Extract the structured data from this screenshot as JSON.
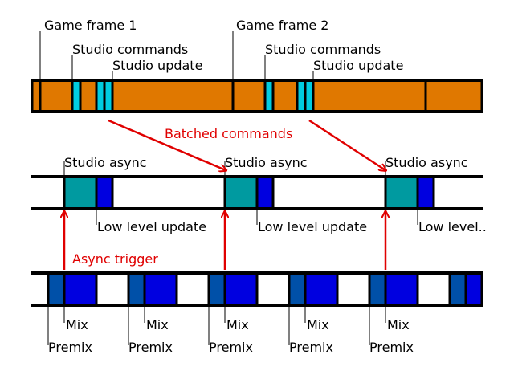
{
  "labels": {
    "game_frame_1": "Game frame 1",
    "game_frame_2": "Game frame 2",
    "studio_commands": "Studio commands",
    "studio_update": "Studio update",
    "batched_commands": "Batched commands",
    "studio_async": "Studio async",
    "low_level_update": "Low level update",
    "low_level_truncated": "Low level..",
    "async_trigger": "Async trigger",
    "mix": "Mix",
    "premix": "Premix"
  },
  "colors": {
    "game_thread": "#e07800",
    "studio_command": "#00cce0",
    "studio_async": "#009aa0",
    "low_level_update": "#0000e0",
    "premix": "#0050a8",
    "mix": "#0000e0",
    "annotation": "#e00000"
  }
}
